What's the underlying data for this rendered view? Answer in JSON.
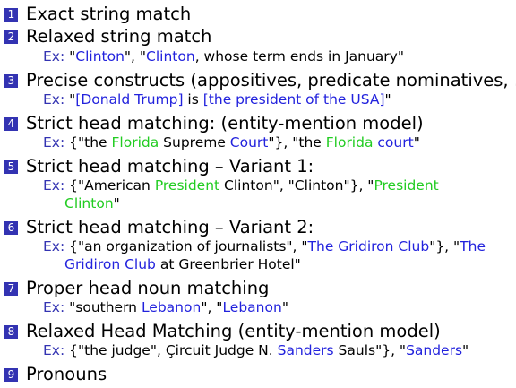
{
  "items": [
    {
      "num": "1",
      "title": "Exact string match"
    },
    {
      "num": "2",
      "title": "Relaxed string match",
      "ex": {
        "label": "Ex:",
        "q1": " \"",
        "s1": "Clinton",
        "t1": "\", \"",
        "s2": "Clinton",
        "t2": ", whose term ends in January\""
      }
    },
    {
      "num": "3",
      "title": "Precise constructs (appositives, predicate nominatives, ...)",
      "ex": {
        "label": "Ex:",
        "q1": " \"",
        "s1": "[Donald Trump]",
        "t1": " is ",
        "s2": "[the president of the USA]",
        "t2": "\""
      }
    },
    {
      "num": "4",
      "title": "Strict head matching: (entity-mention model)",
      "ex": {
        "label": "Ex:",
        "t0": " {\"the ",
        "g1": "Florida",
        "t1": " Supreme ",
        "b1": "Court",
        "t2": "\"}, \"the ",
        "g2": "Florida",
        "t3": " ",
        "b2": "court",
        "t4": "\""
      }
    },
    {
      "num": "5",
      "title": "Strict head matching – Variant 1:",
      "ex": {
        "label": "Ex:",
        "t0": " {\"American ",
        "g1": "President",
        "t1": " Clinton\", \"Clinton\"}, \"",
        "g2": "President",
        "t2": "Clinton",
        "t3": "\""
      }
    },
    {
      "num": "6",
      "title": "Strict head matching – Variant 2:",
      "ex": {
        "label": "Ex:",
        "t0": " {\"an organization of journalists\", \"",
        "b1": "The Gridiron Club",
        "t1": "\"}, \"",
        "b2": "The",
        "b3": "Gridiron Club",
        "t2": " at Greenbrier Hotel\""
      }
    },
    {
      "num": "7",
      "title": "Proper head noun matching",
      "ex": {
        "label": "Ex:",
        "t0": " \"southern ",
        "b1": "Lebanon",
        "t1": "\", \"",
        "b2": "Lebanon",
        "t2": "\""
      }
    },
    {
      "num": "8",
      "title": "Relaxed Head Matching (entity-mention model)",
      "ex": {
        "label": "Ex:",
        "t0": " {\"the judge\", Çircuit Judge N. ",
        "b1": "Sanders",
        "t1": " Sauls\"}, \"",
        "b2": "Sanders",
        "t2": "\""
      }
    },
    {
      "num": "9",
      "title": "Pronouns"
    }
  ],
  "colors": {
    "number_box": "#3333b2",
    "example_label": "#3333b2",
    "blue_highlight": "#2222dd",
    "green_highlight": "#22cc22"
  }
}
